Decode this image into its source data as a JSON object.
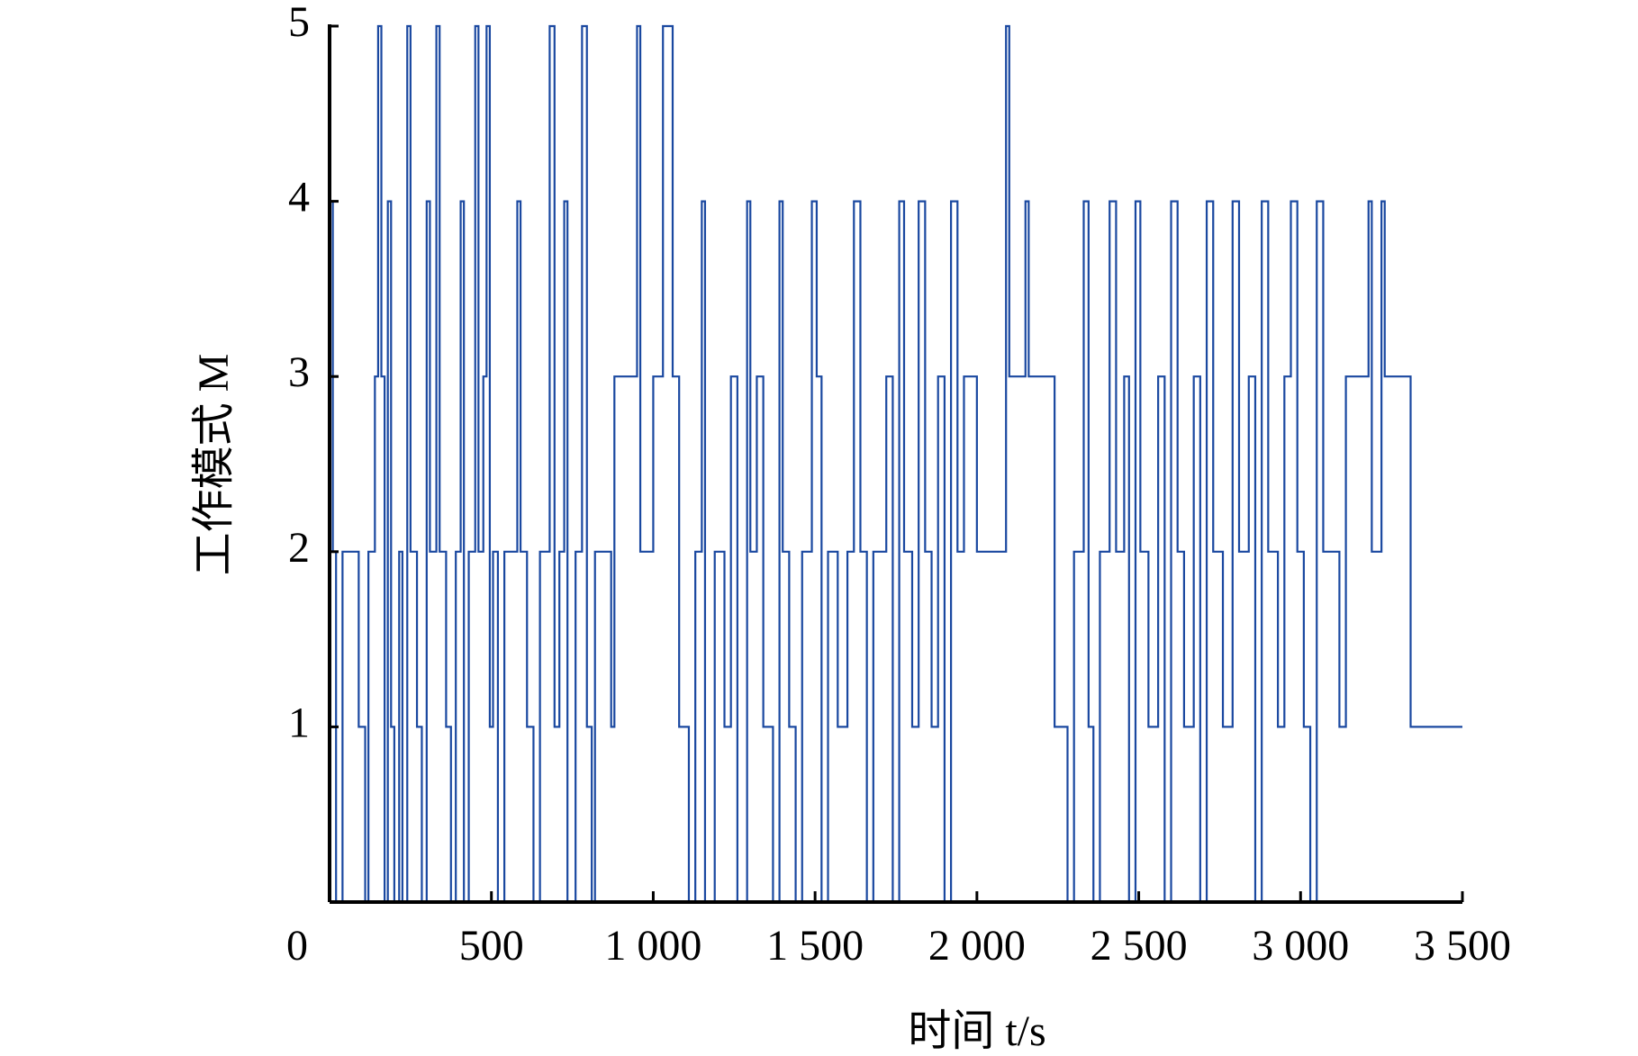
{
  "chart_data": {
    "type": "line",
    "step": true,
    "xlabel": "时间 t/s",
    "ylabel": "工作模式 M",
    "x": [
      0,
      10,
      20,
      40,
      90,
      110,
      120,
      140,
      150,
      160,
      170,
      180,
      190,
      200,
      215,
      225,
      240,
      250,
      270,
      285,
      300,
      310,
      330,
      340,
      360,
      375,
      390,
      405,
      415,
      430,
      450,
      460,
      475,
      485,
      495,
      505,
      520,
      540,
      580,
      590,
      610,
      630,
      650,
      680,
      695,
      710,
      725,
      735,
      760,
      780,
      795,
      810,
      820,
      870,
      880,
      950,
      960,
      1000,
      1030,
      1060,
      1080,
      1110,
      1130,
      1150,
      1160,
      1190,
      1220,
      1240,
      1260,
      1290,
      1300,
      1320,
      1340,
      1370,
      1390,
      1400,
      1420,
      1440,
      1460,
      1490,
      1505,
      1520,
      1540,
      1570,
      1600,
      1620,
      1640,
      1660,
      1680,
      1720,
      1740,
      1760,
      1775,
      1800,
      1820,
      1840,
      1860,
      1880,
      1900,
      1920,
      1940,
      1960,
      2000,
      2090,
      2100,
      2150,
      2160,
      2240,
      2280,
      2300,
      2330,
      2345,
      2360,
      2380,
      2410,
      2430,
      2455,
      2470,
      2490,
      2505,
      2530,
      2560,
      2580,
      2600,
      2620,
      2640,
      2670,
      2690,
      2710,
      2730,
      2760,
      2790,
      2810,
      2840,
      2860,
      2880,
      2900,
      2930,
      2950,
      2970,
      2990,
      3010,
      3030,
      3050,
      3070,
      3120,
      3140,
      3210,
      3220,
      3250,
      3260,
      3340,
      3500
    ],
    "series": [
      {
        "name": "M",
        "color": "#1a48a0",
        "values": [
          4,
          2,
          0,
          2,
          1,
          0,
          2,
          3,
          5,
          3,
          0,
          4,
          1,
          0,
          2,
          0,
          5,
          2,
          1,
          0,
          4,
          2,
          5,
          2,
          1,
          0,
          2,
          4,
          0,
          2,
          5,
          2,
          3,
          5,
          1,
          2,
          0,
          2,
          4,
          2,
          1,
          0,
          2,
          5,
          1,
          2,
          4,
          0,
          2,
          5,
          1,
          0,
          2,
          1,
          3,
          5,
          2,
          3,
          5,
          3,
          1,
          0,
          2,
          4,
          0,
          2,
          1,
          3,
          0,
          4,
          2,
          3,
          1,
          0,
          4,
          2,
          1,
          0,
          2,
          4,
          3,
          0,
          2,
          1,
          2,
          4,
          2,
          0,
          2,
          3,
          0,
          4,
          2,
          1,
          4,
          2,
          1,
          3,
          0,
          4,
          2,
          3,
          2,
          5,
          3,
          4,
          3,
          1,
          0,
          2,
          4,
          1,
          0,
          2,
          4,
          2,
          3,
          0,
          4,
          2,
          1,
          3,
          0,
          4,
          2,
          1,
          3,
          0,
          4,
          2,
          1,
          4,
          2,
          3,
          0,
          4,
          2,
          1,
          3,
          4,
          2,
          1,
          0,
          4,
          2,
          1,
          3,
          4,
          2,
          4,
          3,
          1,
          1
        ]
      }
    ],
    "xlim": [
      0,
      3500
    ],
    "xticks": [
      0,
      500,
      {
        "value": 1000,
        "label": "1 000"
      },
      {
        "value": 1500,
        "label": "1 500"
      },
      {
        "value": 2000,
        "label": "2 000"
      },
      {
        "value": 2500,
        "label": "2 500"
      },
      {
        "value": 3000,
        "label": "3 000"
      },
      {
        "value": 3500,
        "label": "3 500"
      }
    ],
    "ylim": [
      0,
      5
    ],
    "yticks": [
      1,
      2,
      3,
      4,
      5
    ]
  }
}
